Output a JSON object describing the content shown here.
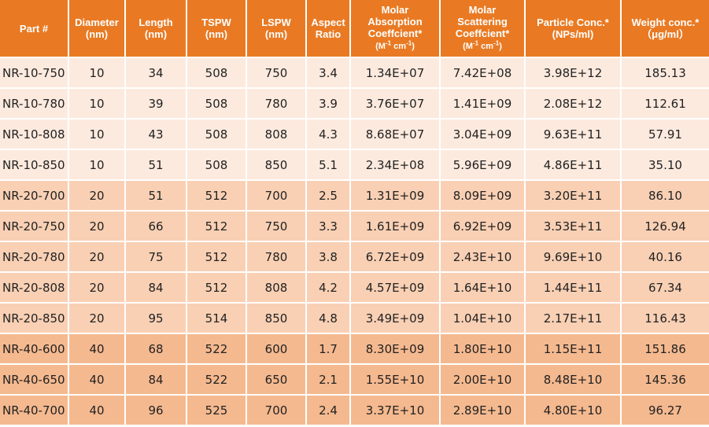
{
  "header": {
    "part": [
      "Part #"
    ],
    "diameter": [
      "Diameter",
      "(nm)"
    ],
    "length": [
      "Length",
      "(nm)"
    ],
    "tspw": [
      "TSPW",
      "(nm)"
    ],
    "lspw": [
      "LSPW",
      "(nm)"
    ],
    "aspect": [
      "Aspect",
      "Ratio"
    ],
    "absorption": [
      "Molar",
      "Absorption",
      "Coeffcient*",
      "(M",
      "-1",
      " cm",
      "-1",
      ")"
    ],
    "scattering": [
      "Molar",
      "Scattering",
      "Coeffcient*",
      "(M",
      "-1",
      " cm",
      "-1",
      ")"
    ],
    "particle": [
      "Particle Conc.*",
      "(NPs/ml)"
    ],
    "weight": [
      "Weight conc.*",
      "（μg/ml）"
    ]
  },
  "rows": [
    {
      "part": "NR-10-750",
      "diameter": "10",
      "length": "34",
      "tspw": "508",
      "lspw": "750",
      "aspect": "3.4",
      "absorption": "1.34E+07",
      "scattering": "7.42E+08",
      "particle": "3.98E+12",
      "weight": "185.13"
    },
    {
      "part": "NR-10-780",
      "diameter": "10",
      "length": "39",
      "tspw": "508",
      "lspw": "780",
      "aspect": "3.9",
      "absorption": "3.76E+07",
      "scattering": "1.41E+09",
      "particle": "2.08E+12",
      "weight": "112.61"
    },
    {
      "part": "NR-10-808",
      "diameter": "10",
      "length": "43",
      "tspw": "508",
      "lspw": "808",
      "aspect": "4.3",
      "absorption": "8.68E+07",
      "scattering": "3.04E+09",
      "particle": "9.63E+11",
      "weight": "57.91"
    },
    {
      "part": "NR-10-850",
      "diameter": "10",
      "length": "51",
      "tspw": "508",
      "lspw": "850",
      "aspect": "5.1",
      "absorption": "2.34E+08",
      "scattering": "5.96E+09",
      "particle": "4.86E+11",
      "weight": "35.10"
    },
    {
      "part": "NR-20-700",
      "diameter": "20",
      "length": "51",
      "tspw": "512",
      "lspw": "700",
      "aspect": "2.5",
      "absorption": "1.31E+09",
      "scattering": "8.09E+09",
      "particle": "3.20E+11",
      "weight": "86.10"
    },
    {
      "part": "NR-20-750",
      "diameter": "20",
      "length": "66",
      "tspw": "512",
      "lspw": "750",
      "aspect": "3.3",
      "absorption": "1.61E+09",
      "scattering": "6.92E+09",
      "particle": "3.53E+11",
      "weight": "126.94"
    },
    {
      "part": "NR-20-780",
      "diameter": "20",
      "length": "75",
      "tspw": "512",
      "lspw": "780",
      "aspect": "3.8",
      "absorption": "6.72E+09",
      "scattering": "2.43E+10",
      "particle": "9.69E+10",
      "weight": "40.16"
    },
    {
      "part": "NR-20-808",
      "diameter": "20",
      "length": "84",
      "tspw": "512",
      "lspw": "808",
      "aspect": "4.2",
      "absorption": "4.57E+09",
      "scattering": "1.64E+10",
      "particle": "1.44E+11",
      "weight": "67.34"
    },
    {
      "part": "NR-20-850",
      "diameter": "20",
      "length": "95",
      "tspw": "514",
      "lspw": "850",
      "aspect": "4.8",
      "absorption": "3.49E+09",
      "scattering": "1.04E+10",
      "particle": "2.17E+11",
      "weight": "116.43"
    },
    {
      "part": "NR-40-600",
      "diameter": "40",
      "length": "68",
      "tspw": "522",
      "lspw": "600",
      "aspect": "1.7",
      "absorption": "8.30E+09",
      "scattering": "1.80E+10",
      "particle": "1.15E+11",
      "weight": "151.86"
    },
    {
      "part": "NR-40-650",
      "diameter": "40",
      "length": "84",
      "tspw": "522",
      "lspw": "650",
      "aspect": "2.1",
      "absorption": "1.55E+10",
      "scattering": "2.00E+10",
      "particle": "8.48E+10",
      "weight": "145.36"
    },
    {
      "part": "NR-40-700",
      "diameter": "40",
      "length": "96",
      "tspw": "525",
      "lspw": "700",
      "aspect": "2.4",
      "absorption": "3.37E+10",
      "scattering": "2.89E+10",
      "particle": "4.80E+10",
      "weight": "96.27"
    }
  ]
}
